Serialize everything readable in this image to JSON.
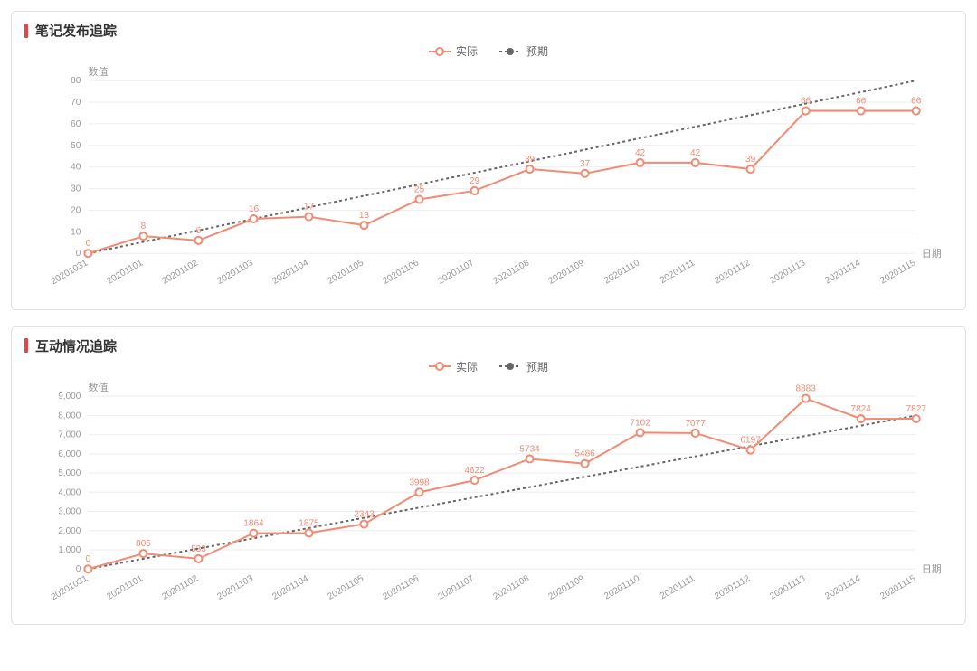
{
  "chart1": {
    "title": "笔记发布追踪",
    "type": "line",
    "legend": {
      "actual": "实际",
      "expected": "预期"
    },
    "y_axis_label": "数值",
    "x_axis_label": "日期",
    "x_categories": [
      "20201031",
      "20201101",
      "20201102",
      "20201103",
      "20201104",
      "20201105",
      "20201106",
      "20201107",
      "20201108",
      "20201109",
      "20201110",
      "20201111",
      "20201112",
      "20201113",
      "20201114",
      "20201115"
    ],
    "actual_values": [
      0,
      8,
      6,
      16,
      17,
      13,
      25,
      29,
      39,
      37,
      42,
      42,
      39,
      66,
      66,
      66
    ],
    "expected_start": 0,
    "expected_end": 80,
    "ylim": [
      0,
      80
    ],
    "ytick_step": 10,
    "actual_color": "#f08b74",
    "expected_color": "#666666",
    "marker_fill": "#ffffff",
    "grid_color": "#eeeeee",
    "axis_text_color": "#999999",
    "line_width": 2,
    "marker_radius": 4,
    "label_fontsize": 10,
    "x_label_rotation": -30
  },
  "chart2": {
    "title": "互动情况追踪",
    "type": "line",
    "legend": {
      "actual": "实际",
      "expected": "预期"
    },
    "y_axis_label": "数值",
    "x_axis_label": "日期",
    "x_categories": [
      "20201031",
      "20201101",
      "20201102",
      "20201103",
      "20201104",
      "20201105",
      "20201106",
      "20201107",
      "20201108",
      "20201109",
      "20201110",
      "20201111",
      "20201112",
      "20201113",
      "20201114",
      "20201115"
    ],
    "actual_values": [
      0,
      805,
      533,
      1864,
      1875,
      2343,
      3998,
      4622,
      5734,
      5486,
      7102,
      7077,
      6197,
      8883,
      7824,
      7827
    ],
    "expected_start": 0,
    "expected_end": 8000,
    "ylim": [
      0,
      9000
    ],
    "ytick_step": 1000,
    "actual_color": "#f08b74",
    "expected_color": "#666666",
    "marker_fill": "#ffffff",
    "grid_color": "#eeeeee",
    "axis_text_color": "#999999",
    "line_width": 2,
    "marker_radius": 4,
    "label_fontsize": 10,
    "x_label_rotation": -30,
    "y_tick_format": "comma"
  }
}
